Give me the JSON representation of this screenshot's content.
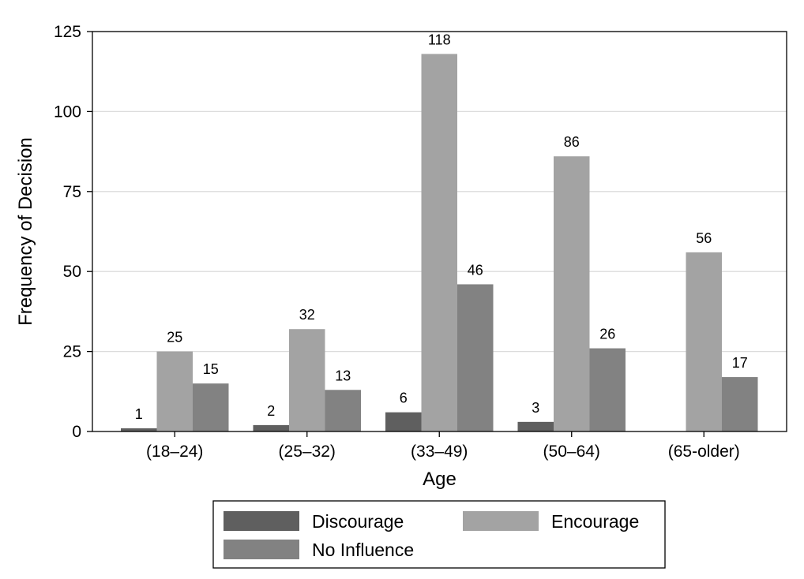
{
  "chart_data": {
    "type": "bar",
    "title": "",
    "xlabel": "Age",
    "ylabel": "Frequency of Decision",
    "categories": [
      "(18–24)",
      "(25–32)",
      "(33–49)",
      "(50–64)",
      "(65-older)"
    ],
    "series": [
      {
        "name": "Discourage",
        "color": "#5f5f5f",
        "values": [
          1,
          2,
          6,
          3,
          null
        ]
      },
      {
        "name": "Encourage",
        "color": "#a3a3a3",
        "values": [
          25,
          32,
          118,
          86,
          56
        ]
      },
      {
        "name": "No Influence",
        "color": "#828282",
        "values": [
          15,
          13,
          46,
          26,
          17
        ]
      }
    ],
    "ylim": [
      0,
      125
    ],
    "yticks": [
      0,
      25,
      50,
      75,
      100,
      125
    ],
    "grid": true,
    "legend_position": "bottom"
  }
}
